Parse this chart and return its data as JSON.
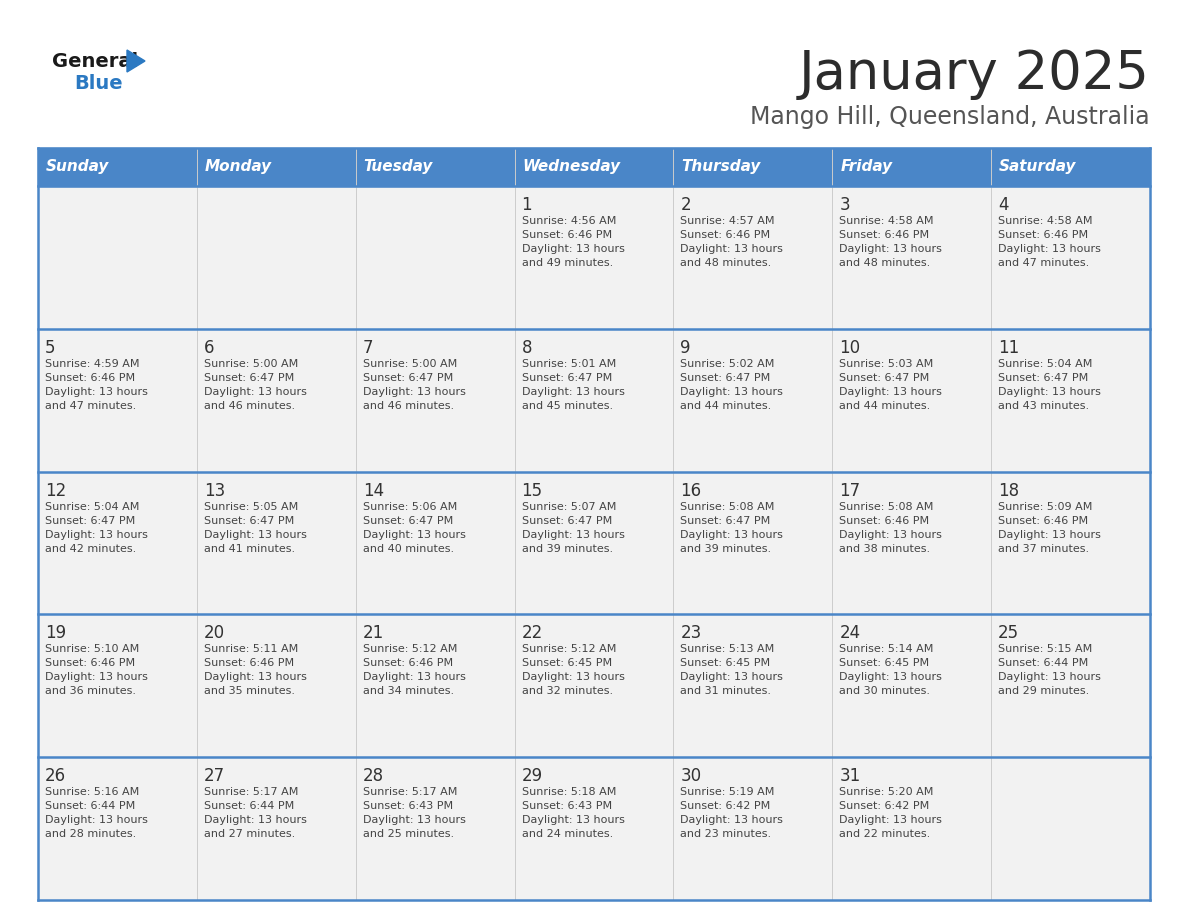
{
  "title": "January 2025",
  "subtitle": "Mango Hill, Queensland, Australia",
  "days_of_week": [
    "Sunday",
    "Monday",
    "Tuesday",
    "Wednesday",
    "Thursday",
    "Friday",
    "Saturday"
  ],
  "header_bg": "#4a86c8",
  "header_text": "#ffffff",
  "row_bg": "#f2f2f2",
  "cell_border_color": "#4a86c8",
  "cell_vline_color": "#cccccc",
  "day_num_color": "#333333",
  "day_info_color": "#444444",
  "title_color": "#2c2c2c",
  "subtitle_color": "#555555",
  "logo_general_color": "#1a1a1a",
  "logo_blue_color": "#2b79c2",
  "logo_triangle_color": "#2b79c2",
  "calendar_data": [
    [
      {
        "day": "",
        "info": ""
      },
      {
        "day": "",
        "info": ""
      },
      {
        "day": "",
        "info": ""
      },
      {
        "day": "1",
        "info": "Sunrise: 4:56 AM\nSunset: 6:46 PM\nDaylight: 13 hours\nand 49 minutes."
      },
      {
        "day": "2",
        "info": "Sunrise: 4:57 AM\nSunset: 6:46 PM\nDaylight: 13 hours\nand 48 minutes."
      },
      {
        "day": "3",
        "info": "Sunrise: 4:58 AM\nSunset: 6:46 PM\nDaylight: 13 hours\nand 48 minutes."
      },
      {
        "day": "4",
        "info": "Sunrise: 4:58 AM\nSunset: 6:46 PM\nDaylight: 13 hours\nand 47 minutes."
      }
    ],
    [
      {
        "day": "5",
        "info": "Sunrise: 4:59 AM\nSunset: 6:46 PM\nDaylight: 13 hours\nand 47 minutes."
      },
      {
        "day": "6",
        "info": "Sunrise: 5:00 AM\nSunset: 6:47 PM\nDaylight: 13 hours\nand 46 minutes."
      },
      {
        "day": "7",
        "info": "Sunrise: 5:00 AM\nSunset: 6:47 PM\nDaylight: 13 hours\nand 46 minutes."
      },
      {
        "day": "8",
        "info": "Sunrise: 5:01 AM\nSunset: 6:47 PM\nDaylight: 13 hours\nand 45 minutes."
      },
      {
        "day": "9",
        "info": "Sunrise: 5:02 AM\nSunset: 6:47 PM\nDaylight: 13 hours\nand 44 minutes."
      },
      {
        "day": "10",
        "info": "Sunrise: 5:03 AM\nSunset: 6:47 PM\nDaylight: 13 hours\nand 44 minutes."
      },
      {
        "day": "11",
        "info": "Sunrise: 5:04 AM\nSunset: 6:47 PM\nDaylight: 13 hours\nand 43 minutes."
      }
    ],
    [
      {
        "day": "12",
        "info": "Sunrise: 5:04 AM\nSunset: 6:47 PM\nDaylight: 13 hours\nand 42 minutes."
      },
      {
        "day": "13",
        "info": "Sunrise: 5:05 AM\nSunset: 6:47 PM\nDaylight: 13 hours\nand 41 minutes."
      },
      {
        "day": "14",
        "info": "Sunrise: 5:06 AM\nSunset: 6:47 PM\nDaylight: 13 hours\nand 40 minutes."
      },
      {
        "day": "15",
        "info": "Sunrise: 5:07 AM\nSunset: 6:47 PM\nDaylight: 13 hours\nand 39 minutes."
      },
      {
        "day": "16",
        "info": "Sunrise: 5:08 AM\nSunset: 6:47 PM\nDaylight: 13 hours\nand 39 minutes."
      },
      {
        "day": "17",
        "info": "Sunrise: 5:08 AM\nSunset: 6:46 PM\nDaylight: 13 hours\nand 38 minutes."
      },
      {
        "day": "18",
        "info": "Sunrise: 5:09 AM\nSunset: 6:46 PM\nDaylight: 13 hours\nand 37 minutes."
      }
    ],
    [
      {
        "day": "19",
        "info": "Sunrise: 5:10 AM\nSunset: 6:46 PM\nDaylight: 13 hours\nand 36 minutes."
      },
      {
        "day": "20",
        "info": "Sunrise: 5:11 AM\nSunset: 6:46 PM\nDaylight: 13 hours\nand 35 minutes."
      },
      {
        "day": "21",
        "info": "Sunrise: 5:12 AM\nSunset: 6:46 PM\nDaylight: 13 hours\nand 34 minutes."
      },
      {
        "day": "22",
        "info": "Sunrise: 5:12 AM\nSunset: 6:45 PM\nDaylight: 13 hours\nand 32 minutes."
      },
      {
        "day": "23",
        "info": "Sunrise: 5:13 AM\nSunset: 6:45 PM\nDaylight: 13 hours\nand 31 minutes."
      },
      {
        "day": "24",
        "info": "Sunrise: 5:14 AM\nSunset: 6:45 PM\nDaylight: 13 hours\nand 30 minutes."
      },
      {
        "day": "25",
        "info": "Sunrise: 5:15 AM\nSunset: 6:44 PM\nDaylight: 13 hours\nand 29 minutes."
      }
    ],
    [
      {
        "day": "26",
        "info": "Sunrise: 5:16 AM\nSunset: 6:44 PM\nDaylight: 13 hours\nand 28 minutes."
      },
      {
        "day": "27",
        "info": "Sunrise: 5:17 AM\nSunset: 6:44 PM\nDaylight: 13 hours\nand 27 minutes."
      },
      {
        "day": "28",
        "info": "Sunrise: 5:17 AM\nSunset: 6:43 PM\nDaylight: 13 hours\nand 25 minutes."
      },
      {
        "day": "29",
        "info": "Sunrise: 5:18 AM\nSunset: 6:43 PM\nDaylight: 13 hours\nand 24 minutes."
      },
      {
        "day": "30",
        "info": "Sunrise: 5:19 AM\nSunset: 6:42 PM\nDaylight: 13 hours\nand 23 minutes."
      },
      {
        "day": "31",
        "info": "Sunrise: 5:20 AM\nSunset: 6:42 PM\nDaylight: 13 hours\nand 22 minutes."
      },
      {
        "day": "",
        "info": ""
      }
    ]
  ]
}
